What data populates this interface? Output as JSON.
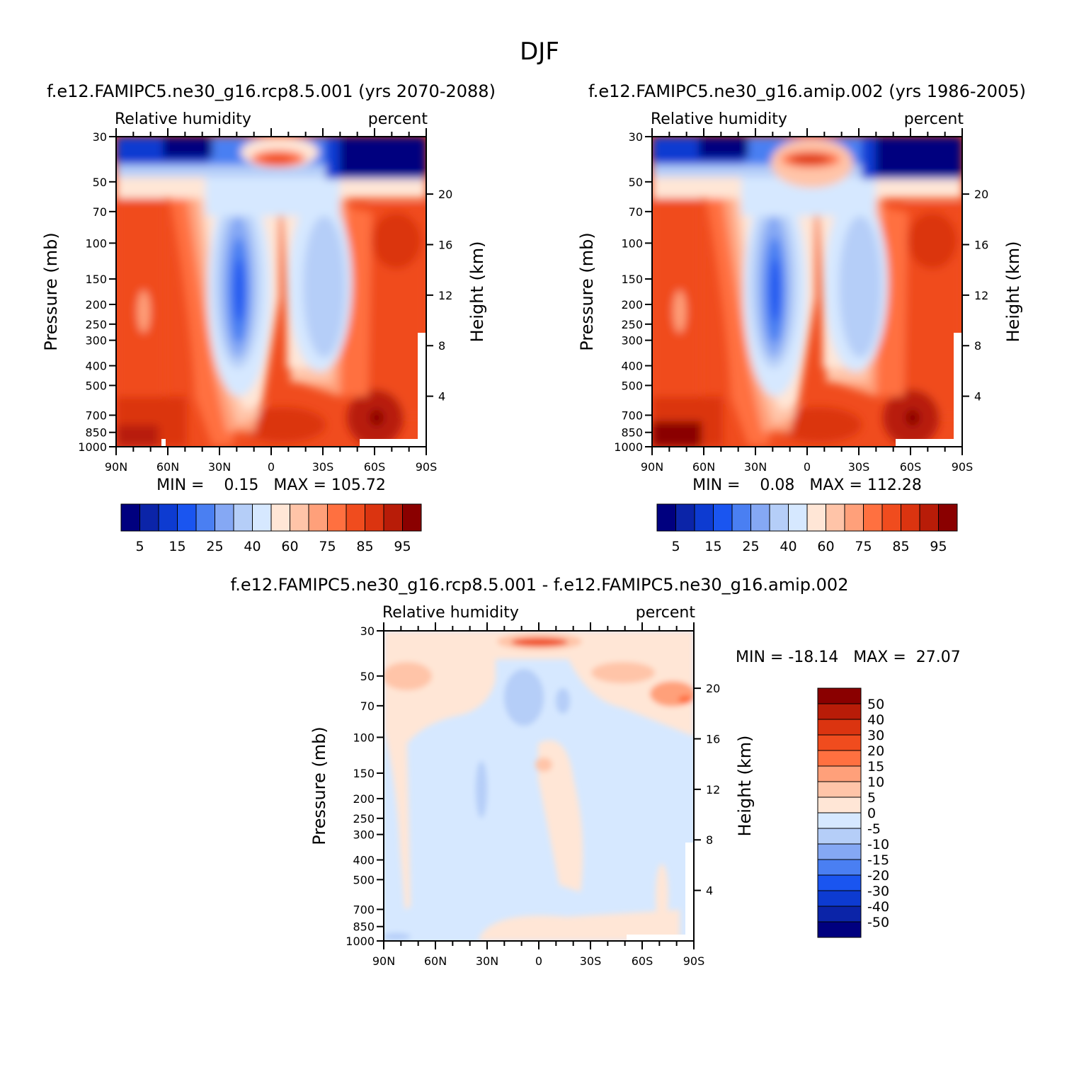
{
  "page": {
    "title": "DJF"
  },
  "panels": [
    {
      "title": "f.e12.FAMIPC5.ne30_g16.rcp8.5.001 (yrs 2070-2088)",
      "left_label": "Relative humidity",
      "right_label": "percent",
      "min_max": "MIN =    0.15   MAX = 105.72"
    },
    {
      "title": "f.e12.FAMIPC5.ne30_g16.amip.002 (yrs 1986-2005)",
      "left_label": "Relative humidity",
      "right_label": "percent",
      "min_max": "MIN =    0.08   MAX = 112.28"
    },
    {
      "title": "f.e12.FAMIPC5.ne30_g16.rcp8.5.001 - f.e12.FAMIPC5.ne30_g16.amip.002",
      "left_label": "Relative humidity",
      "right_label": "percent",
      "min_max": "MIN = -18.14   MAX =  27.07"
    }
  ],
  "axes": {
    "ylabel": "Pressure (mb)",
    "y2label": "Height (km)"
  },
  "colors": {
    "rh_scale": [
      "#00007f",
      "#0b24a8",
      "#0d3bd1",
      "#1a55f0",
      "#4a7ff2",
      "#85a8f4",
      "#b5cef8",
      "#d6e8ff",
      "#ffe6d6",
      "#ffc4a8",
      "#ffa07a",
      "#ff7040",
      "#f04c1e",
      "#db3410",
      "#b81c08",
      "#8a0000"
    ],
    "diff_scale": [
      "#00007f",
      "#0b24a8",
      "#0d3bd1",
      "#1a55f0",
      "#4a7ff2",
      "#85a8f4",
      "#b5cef8",
      "#d6e8ff",
      "#ffe6d6",
      "#ffc4a8",
      "#ffa07a",
      "#ff7040",
      "#f04c1e",
      "#db3410",
      "#b81c08",
      "#8a0000"
    ]
  },
  "chart_data": [
    {
      "type": "heatmap",
      "title": "f.e12.FAMIPC5.ne30_g16.rcp8.5.001 (yrs 2070-2088)",
      "xlabel": "",
      "ylabel": "Pressure (mb)",
      "y2label": "Height (km)",
      "x_ticklabels": [
        "90N",
        "60N",
        "30N",
        "0",
        "30S",
        "60S",
        "90S"
      ],
      "x_ticks": [
        90,
        60,
        30,
        0,
        -30,
        -60,
        -90
      ],
      "y_ticks": [
        30,
        50,
        70,
        100,
        150,
        200,
        250,
        300,
        400,
        500,
        700,
        850,
        1000
      ],
      "y2_ticks": [
        20,
        16,
        12,
        8,
        4
      ],
      "ylim": [
        1000,
        30
      ],
      "y_scale": "log",
      "variable": "Relative humidity",
      "units": "percent",
      "min": 0.15,
      "max": 105.72,
      "colorbar_labels": [
        "5",
        "15",
        "25",
        "40",
        "60",
        "75",
        "85",
        "95"
      ]
    },
    {
      "type": "heatmap",
      "title": "f.e12.FAMIPC5.ne30_g16.amip.002 (yrs 1986-2005)",
      "xlabel": "",
      "ylabel": "Pressure (mb)",
      "y2label": "Height (km)",
      "x_ticklabels": [
        "90N",
        "60N",
        "30N",
        "0",
        "30S",
        "60S",
        "90S"
      ],
      "x_ticks": [
        90,
        60,
        30,
        0,
        -30,
        -60,
        -90
      ],
      "y_ticks": [
        30,
        50,
        70,
        100,
        150,
        200,
        250,
        300,
        400,
        500,
        700,
        850,
        1000
      ],
      "y2_ticks": [
        20,
        16,
        12,
        8,
        4
      ],
      "ylim": [
        1000,
        30
      ],
      "y_scale": "log",
      "variable": "Relative humidity",
      "units": "percent",
      "min": 0.08,
      "max": 112.28,
      "colorbar_labels": [
        "5",
        "15",
        "25",
        "40",
        "60",
        "75",
        "85",
        "95"
      ]
    },
    {
      "type": "heatmap",
      "title": "f.e12.FAMIPC5.ne30_g16.rcp8.5.001 - f.e12.FAMIPC5.ne30_g16.amip.002",
      "xlabel": "",
      "ylabel": "Pressure (mb)",
      "y2label": "Height (km)",
      "x_ticklabels": [
        "90N",
        "60N",
        "30N",
        "0",
        "30S",
        "60S",
        "90S"
      ],
      "x_ticks": [
        90,
        60,
        30,
        0,
        -30,
        -60,
        -90
      ],
      "y_ticks": [
        30,
        50,
        70,
        100,
        150,
        200,
        250,
        300,
        400,
        500,
        700,
        850,
        1000
      ],
      "y2_ticks": [
        20,
        16,
        12,
        8,
        4
      ],
      "ylim": [
        1000,
        30
      ],
      "y_scale": "log",
      "variable": "Relative humidity",
      "units": "percent",
      "min": -18.14,
      "max": 27.07,
      "colorbar_labels": [
        "50",
        "40",
        "30",
        "20",
        "15",
        "10",
        "5",
        "0",
        "-5",
        "-10",
        "-15",
        "-20",
        "-30",
        "-40",
        "-50"
      ]
    }
  ]
}
